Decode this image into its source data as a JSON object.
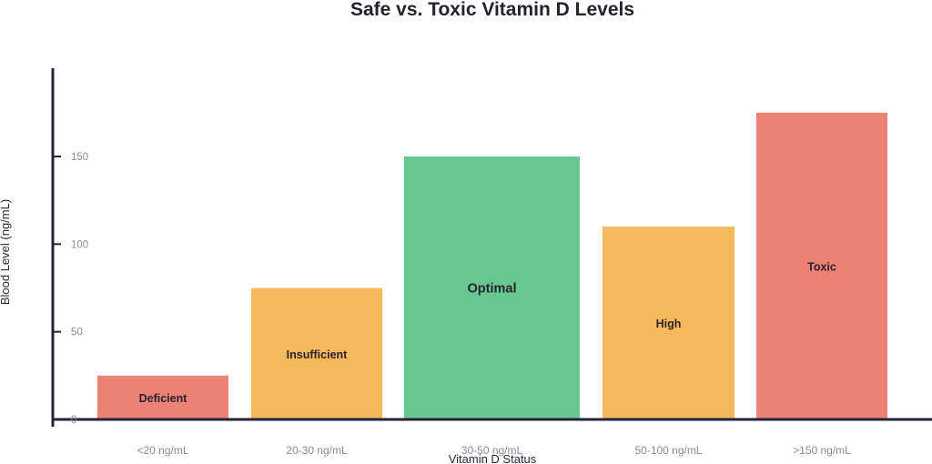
{
  "chart_data": {
    "type": "bar",
    "title": "Safe vs. Toxic Vitamin D Levels",
    "xlabel": "Vitamin D Status",
    "ylabel": "Blood Level (ng/mL)",
    "ylim": [
      0,
      175
    ],
    "yticks": [
      0,
      50,
      100,
      150
    ],
    "grid": false,
    "legend": null,
    "categories": [
      "<20 ng/mL",
      "20-30 ng/mL",
      "30-50 ng/mL",
      "50-100 ng/mL",
      ">150 ng/mL"
    ],
    "values": [
      25,
      75,
      150,
      110,
      175
    ],
    "bar_labels": [
      "Deficient",
      "Insufficient",
      "Optimal",
      "High",
      "Toxic"
    ],
    "colors": [
      "#EC8174",
      "#F6B95B",
      "#66C78F",
      "#F6B95B",
      "#EC8174"
    ]
  },
  "layout": {
    "axis_color": "#23233a",
    "bars": [
      {
        "x0": 107,
        "x1": 251,
        "font_size": 12.5
      },
      {
        "x0": 276,
        "x1": 420,
        "font_size": 12.5
      },
      {
        "x0": 444,
        "x1": 637,
        "font_size": 14.5
      },
      {
        "x0": 662,
        "x1": 807,
        "font_size": 12.5
      },
      {
        "x0": 831,
        "x1": 975,
        "font_size": 12.5
      }
    ]
  }
}
